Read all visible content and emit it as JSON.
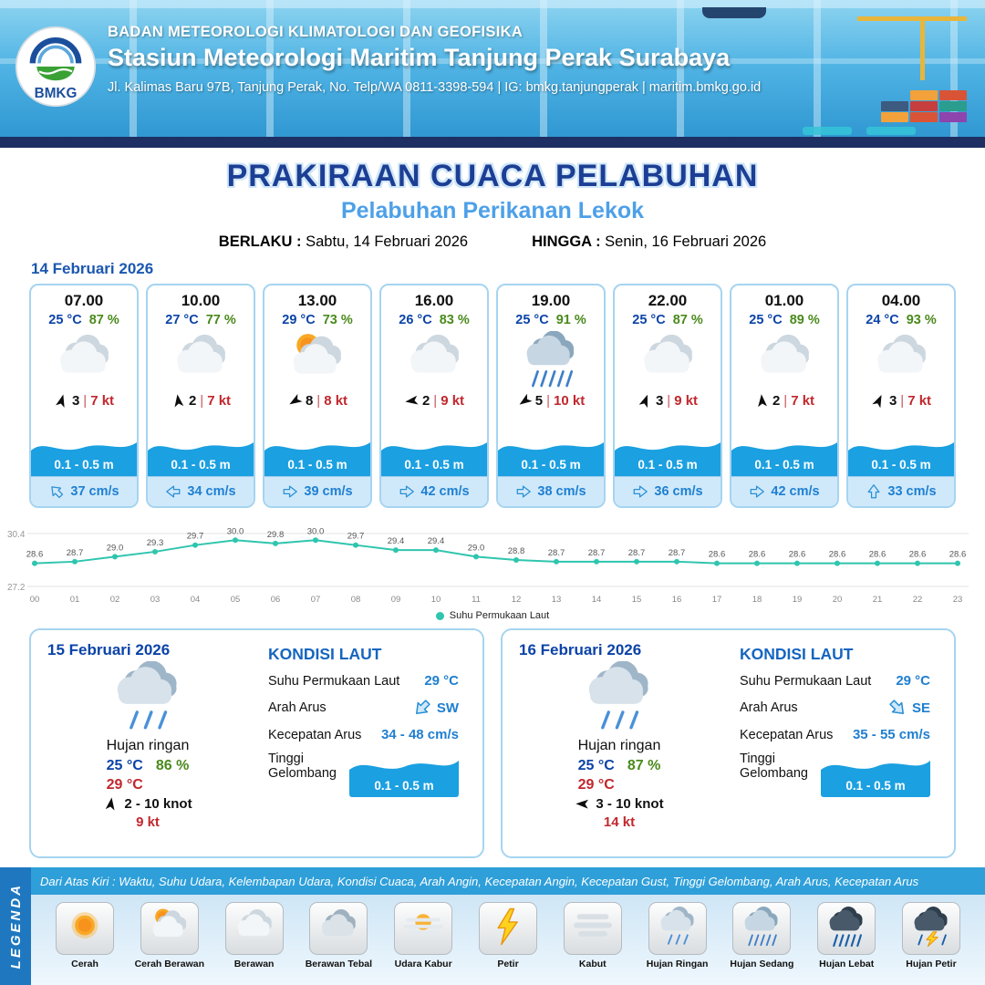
{
  "colors": {
    "header-blue": "#2e9fd9",
    "navy": "#1d2f63",
    "title-navy": "#1c3e94",
    "title-light": "#4da0e8",
    "temp-blue": "#0b43a8",
    "rh-green": "#4a8a1c",
    "kt-red": "#c1272d",
    "wave-blue": "#1ba0e1",
    "cur-blue": "#1f7fd0",
    "cur-bg": "#cfe9fb",
    "card-border": "#a6d4f0",
    "line-teal": "#2fc5ae",
    "legend-bar": "#2e9fd9",
    "legend-side": "#1f78bf",
    "date-blue": "#1a57b0"
  },
  "misc": {
    "pipe": "|"
  },
  "header": {
    "logo_text": "BMKG",
    "org": "BADAN METEOROLOGI KLIMATOLOGI DAN GEOFISIKA",
    "station": "Stasiun Meteorologi Maritim Tanjung Perak Surabaya",
    "address": "Jl. Kalimas Baru 97B, Tanjung Perak, No. Telp/WA 0811-3398-594 | IG: bmkg.tanjungperak | maritim.bmkg.go.id"
  },
  "title": {
    "main": "PRAKIRAAN CUACA PELABUHAN",
    "sub": "Pelabuhan Perikanan Lekok",
    "berlaku_label": "BERLAKU :",
    "berlaku": "Sabtu, 14 Februari 2026",
    "hingga_label": "HINGGA :",
    "hingga": "Senin, 16 Februari 2026"
  },
  "forecast": {
    "date": "14 Februari 2026",
    "hours": [
      {
        "time": "07.00",
        "temp": "25 °C",
        "rh": "87 %",
        "icon": "cloud",
        "wind_deg": 15,
        "wind_val": "3",
        "wind_kt": "7 kt",
        "wave": "0.1 - 0.5 m",
        "cur_deg": 315,
        "cur": "37 cm/s"
      },
      {
        "time": "10.00",
        "temp": "27 °C",
        "rh": "77 %",
        "icon": "cloud",
        "wind_deg": 352,
        "wind_val": "2",
        "wind_kt": "7 kt",
        "wave": "0.1 - 0.5 m",
        "cur_deg": 270,
        "cur": "34 cm/s"
      },
      {
        "time": "13.00",
        "temp": "29 °C",
        "rh": "73 %",
        "icon": "sun-cloud",
        "wind_deg": 238,
        "wind_val": "8",
        "wind_kt": "8 kt",
        "wave": "0.1 - 0.5 m",
        "cur_deg": 90,
        "cur": "39 cm/s"
      },
      {
        "time": "16.00",
        "temp": "26 °C",
        "rh": "83 %",
        "icon": "cloud",
        "wind_deg": 262,
        "wind_val": "2",
        "wind_kt": "9 kt",
        "wave": "0.1 - 0.5 m",
        "cur_deg": 90,
        "cur": "42 cm/s"
      },
      {
        "time": "19.00",
        "temp": "25 °C",
        "rh": "91 %",
        "icon": "rain-medium",
        "wind_deg": 235,
        "wind_val": "5",
        "wind_kt": "10 kt",
        "wave": "0.1 - 0.5 m",
        "cur_deg": 90,
        "cur": "38 cm/s"
      },
      {
        "time": "22.00",
        "temp": "25 °C",
        "rh": "87 %",
        "icon": "cloud",
        "wind_deg": 20,
        "wind_val": "3",
        "wind_kt": "9 kt",
        "wave": "0.1 - 0.5 m",
        "cur_deg": 90,
        "cur": "36 cm/s"
      },
      {
        "time": "01.00",
        "temp": "25 °C",
        "rh": "89 %",
        "icon": "cloud",
        "wind_deg": 355,
        "wind_val": "2",
        "wind_kt": "7 kt",
        "wave": "0.1 - 0.5 m",
        "cur_deg": 90,
        "cur": "42 cm/s"
      },
      {
        "time": "04.00",
        "temp": "24 °C",
        "rh": "93 %",
        "icon": "cloud",
        "wind_deg": 25,
        "wind_val": "3",
        "wind_kt": "7 kt",
        "wave": "0.1 - 0.5 m",
        "cur_deg": 0,
        "cur": "33 cm/s"
      }
    ]
  },
  "chart_data": {
    "type": "line",
    "title": "Suhu Permukaan Laut",
    "series_name": "Suhu Permukaan Laut",
    "x": [
      "00",
      "01",
      "02",
      "03",
      "04",
      "05",
      "06",
      "07",
      "08",
      "09",
      "10",
      "11",
      "12",
      "13",
      "14",
      "15",
      "16",
      "17",
      "18",
      "19",
      "20",
      "21",
      "22",
      "23"
    ],
    "values": [
      28.6,
      28.7,
      29.0,
      29.3,
      29.7,
      30.0,
      29.8,
      30.0,
      29.7,
      29.4,
      29.4,
      29.0,
      28.8,
      28.7,
      28.7,
      28.7,
      28.7,
      28.6,
      28.6,
      28.6,
      28.6,
      28.6,
      28.6,
      28.6
    ],
    "ylim": [
      27.2,
      30.4
    ],
    "y_tick_top": "30.4",
    "y_tick_bottom": "27.2",
    "line_color": "#2fc5ae",
    "grid": true,
    "legend_position": "bottom"
  },
  "days": [
    {
      "date": "15 Februari 2026",
      "icon": "rain-light",
      "cond": "Hujan ringan",
      "tmin": "25 °C",
      "tmax": "29 °C",
      "rh": "86 %",
      "wind_deg": 8,
      "wind": "2  - 10 knot",
      "gust": "9 kt",
      "sea_title": "KONDISI LAUT",
      "sst_label": "Suhu Permukaan Laut",
      "sst": "29 °C",
      "arus_label": "Arah Arus",
      "arus_dir": "SW",
      "arus_deg": 225,
      "kec_label": "Kecepatan Arus",
      "kec": "34 - 48 cm/s",
      "gel_label": "Tinggi Gelombang",
      "gel": "0.1 - 0.5 m"
    },
    {
      "date": "16 Februari 2026",
      "icon": "rain-light",
      "cond": "Hujan ringan",
      "tmin": "25 °C",
      "tmax": "29 °C",
      "rh": "87 %",
      "wind_deg": 272,
      "wind": "3  - 10 knot",
      "gust": "14 kt",
      "sea_title": "KONDISI LAUT",
      "sst_label": "Suhu Permukaan Laut",
      "sst": "29 °C",
      "arus_label": "Arah Arus",
      "arus_dir": "SE",
      "arus_deg": 135,
      "kec_label": "Kecepatan Arus",
      "kec": "35 - 55 cm/s",
      "gel_label": "Tinggi Gelombang",
      "gel": "0.1 - 0.5 m"
    }
  ],
  "legend": {
    "side": "LEGENDA",
    "caption": "Dari Atas Kiri : Waktu, Suhu Udara, Kelembapan Udara, Kondisi Cuaca, Arah Angin, Kecepatan Angin, Kecepatan Gust, Tinggi Gelombang, Arah Arus, Kecepatan Arus",
    "items": [
      {
        "label": "Cerah",
        "icon": "sun"
      },
      {
        "label": "Cerah Berawan",
        "icon": "sun-cloud"
      },
      {
        "label": "Berawan",
        "icon": "cloud"
      },
      {
        "label": "Berawan Tebal",
        "icon": "cloud-thick"
      },
      {
        "label": "Udara Kabur",
        "icon": "haze"
      },
      {
        "label": "Petir",
        "icon": "lightning"
      },
      {
        "label": "Kabut",
        "icon": "fog"
      },
      {
        "label": "Hujan Ringan",
        "icon": "rain-light"
      },
      {
        "label": "Hujan Sedang",
        "icon": "rain-medium"
      },
      {
        "label": "Hujan Lebat",
        "icon": "rain-heavy"
      },
      {
        "label": "Hujan Petir",
        "icon": "thunderstorm"
      }
    ]
  }
}
